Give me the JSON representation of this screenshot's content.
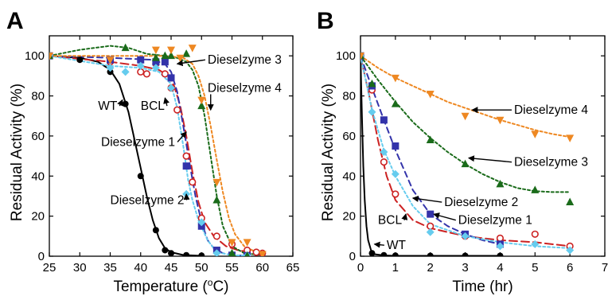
{
  "chart_data": [
    {
      "type": "line",
      "panel": "A",
      "xlabel": "Temperature (",
      "xlabel_sup": "o",
      "xlabel_tail": "C)",
      "ylabel": "Residual Activity (%)",
      "xlim": [
        25,
        65
      ],
      "ylim": [
        0,
        110
      ],
      "xticks": [
        25,
        30,
        35,
        40,
        45,
        50,
        55,
        60,
        65
      ],
      "yticks": [
        0,
        20,
        40,
        60,
        80,
        100
      ],
      "grid": false,
      "series": [
        {
          "name": "WT",
          "color": "#000000",
          "marker": "circle-filled",
          "line": "solid",
          "x": [
            25,
            30,
            35,
            37.5,
            40,
            42.5,
            44,
            45,
            47.5,
            50
          ],
          "y": [
            100,
            98,
            92,
            76,
            40,
            13,
            3,
            1.5,
            0.5,
            0.3
          ],
          "fit": [
            [
              25,
              100
            ],
            [
              30,
              99
            ],
            [
              33,
              97
            ],
            [
              35,
              93
            ],
            [
              36.5,
              86
            ],
            [
              38,
              72
            ],
            [
              39,
              58
            ],
            [
              40,
              44
            ],
            [
              41,
              30
            ],
            [
              42,
              18
            ],
            [
              43,
              9
            ],
            [
              44,
              4
            ],
            [
              45,
              2
            ],
            [
              47,
              0.6
            ],
            [
              50,
              0.2
            ]
          ]
        },
        {
          "name": "BCL",
          "color": "#cc2222",
          "marker": "circle-open",
          "line": "longdash",
          "x": [
            25,
            35,
            40,
            41,
            42.5,
            44,
            45,
            46,
            47.5,
            48.5,
            50,
            52.5,
            55,
            57.5,
            59,
            60
          ],
          "y": [
            100,
            97,
            92,
            91,
            96,
            91,
            84,
            73,
            50,
            37,
            19,
            10,
            6,
            3,
            2,
            1.5
          ],
          "fit": [
            [
              25,
              100
            ],
            [
              35,
              97
            ],
            [
              40,
              95
            ],
            [
              43,
              93
            ],
            [
              44.5,
              90
            ],
            [
              45.5,
              85
            ],
            [
              46.5,
              75
            ],
            [
              47.5,
              60
            ],
            [
              48.5,
              42
            ],
            [
              49.5,
              27
            ],
            [
              50.5,
              17
            ],
            [
              52,
              10
            ],
            [
              54,
              5
            ],
            [
              56,
              3
            ],
            [
              58,
              2
            ],
            [
              60,
              1.5
            ]
          ]
        },
        {
          "name": "Dieselzyme 1",
          "color": "#3333aa",
          "marker": "square-filled",
          "line": "dash",
          "x": [
            25,
            35,
            40,
            42.5,
            44,
            45,
            47.5,
            50,
            52.5,
            55,
            57.5
          ],
          "y": [
            100,
            98,
            98,
            97,
            97,
            89,
            45,
            15,
            3,
            0.5,
            0.3
          ],
          "fit": [
            [
              25,
              100
            ],
            [
              35,
              99
            ],
            [
              42,
              98
            ],
            [
              44,
              96
            ],
            [
              45,
              92
            ],
            [
              46,
              82
            ],
            [
              47,
              65
            ],
            [
              48,
              47
            ],
            [
              49,
              30
            ],
            [
              50,
              17
            ],
            [
              51,
              8
            ],
            [
              52,
              4
            ],
            [
              53.5,
              1.5
            ],
            [
              55,
              0.5
            ],
            [
              58,
              0.2
            ]
          ]
        },
        {
          "name": "Dieselzyme 2",
          "color": "#66ccee",
          "marker": "diamond-filled",
          "line": "dot",
          "x": [
            25,
            35,
            37.5,
            40,
            42.5,
            45,
            47.5,
            50,
            52.5,
            55,
            57.5
          ],
          "y": [
            100,
            94,
            92,
            95,
            94,
            84,
            31,
            17,
            1.5,
            0.5,
            0.3
          ],
          "fit": [
            [
              25,
              100
            ],
            [
              35,
              95
            ],
            [
              40,
              94
            ],
            [
              43,
              92
            ],
            [
              45,
              86
            ],
            [
              46,
              74
            ],
            [
              47,
              55
            ],
            [
              47.8,
              38
            ],
            [
              48.5,
              28
            ],
            [
              49.5,
              18
            ],
            [
              51,
              8
            ],
            [
              52.5,
              2
            ],
            [
              55,
              0.5
            ],
            [
              58,
              0.2
            ]
          ]
        },
        {
          "name": "Dieselzyme 3",
          "color": "#1a6b1a",
          "marker": "triangle-up-filled",
          "line": "dot",
          "x": [
            25,
            37.5,
            42.5,
            44,
            45,
            47.5,
            50,
            52.5,
            55,
            57.5
          ],
          "y": [
            100,
            104,
            99,
            100,
            100,
            101,
            75,
            28,
            1.5,
            0.3
          ],
          "fit": [
            [
              25,
              100
            ],
            [
              30,
              103
            ],
            [
              35,
              105
            ],
            [
              38,
              104
            ],
            [
              41,
              101
            ],
            [
              44,
              100
            ],
            [
              46,
              99
            ],
            [
              47.5,
              97
            ],
            [
              48.5,
              93
            ],
            [
              49.5,
              85
            ],
            [
              50.5,
              70
            ],
            [
              51.5,
              50
            ],
            [
              52.5,
              30
            ],
            [
              53.5,
              15
            ],
            [
              55,
              5
            ],
            [
              57,
              1.5
            ],
            [
              60,
              0.5
            ]
          ]
        },
        {
          "name": "Dieselzyme 4",
          "color": "#ee8822",
          "marker": "triangle-down-filled",
          "line": "dot",
          "x": [
            25,
            35,
            42.5,
            45,
            46.5,
            48.5,
            50,
            52.5,
            55,
            57.5,
            60
          ],
          "y": [
            100,
            98,
            103,
            103,
            99,
            104,
            78,
            37,
            7,
            7,
            1
          ],
          "fit": [
            [
              25,
              100
            ],
            [
              35,
              100
            ],
            [
              44,
              100
            ],
            [
              47,
              99
            ],
            [
              48.5,
              96
            ],
            [
              49.5,
              90
            ],
            [
              50.5,
              80
            ],
            [
              51.5,
              65
            ],
            [
              52.5,
              48
            ],
            [
              53.5,
              32
            ],
            [
              54.5,
              19
            ],
            [
              55.5,
              11
            ],
            [
              57,
              5
            ],
            [
              59,
              2
            ],
            [
              60,
              1
            ]
          ]
        }
      ],
      "annotations": [
        {
          "text": "WT",
          "tx": 33,
          "ty": 75,
          "ax": 37,
          "ay": 78
        },
        {
          "text": "BCL",
          "tx": 40,
          "ty": 75,
          "ax": 44,
          "ay": 79
        },
        {
          "text": "Dieselzyme 1",
          "tx": 33.5,
          "ty": 57,
          "ax": 47.5,
          "ay": 62
        },
        {
          "text": "Dieselzyme 2",
          "tx": 35,
          "ty": 28,
          "ax": 47.5,
          "ay": 31
        },
        {
          "text": "Dieselzyme 3",
          "tx": 51,
          "ty": 98,
          "ax": 46,
          "ay": 96
        },
        {
          "text": "Dieselzyme 4",
          "tx": 51,
          "ty": 84,
          "ax": 51.5,
          "ay": 73
        }
      ]
    },
    {
      "type": "line",
      "panel": "B",
      "xlabel": "Time (hr)",
      "ylabel": "Residual Activity (%)",
      "xlim": [
        0,
        7
      ],
      "ylim": [
        0,
        110
      ],
      "xticks": [
        0,
        1,
        2,
        3,
        4,
        5,
        6,
        7
      ],
      "yticks": [
        0,
        20,
        40,
        60,
        80,
        100
      ],
      "grid": false,
      "series": [
        {
          "name": "WT",
          "color": "#000000",
          "marker": "circle-filled",
          "line": "solid",
          "x": [
            0,
            0.33,
            0.67,
            1,
            2,
            3,
            4
          ],
          "y": [
            100,
            1.5,
            0.5,
            0.3,
            0.2,
            0.2,
            0.2
          ],
          "fit": [
            [
              0,
              100
            ],
            [
              0.04,
              70
            ],
            [
              0.08,
              45
            ],
            [
              0.12,
              28
            ],
            [
              0.17,
              15
            ],
            [
              0.22,
              8
            ],
            [
              0.3,
              3
            ],
            [
              0.4,
              1
            ],
            [
              0.67,
              0.4
            ],
            [
              1,
              0.2
            ],
            [
              4,
              0.2
            ]
          ]
        },
        {
          "name": "BCL",
          "color": "#cc2222",
          "marker": "circle-open",
          "line": "longdash",
          "x": [
            0,
            0.33,
            0.67,
            1,
            2,
            3,
            4,
            5,
            6
          ],
          "y": [
            100,
            83,
            47,
            31,
            15,
            10,
            9,
            11,
            5
          ],
          "fit": [
            [
              0,
              100
            ],
            [
              0.25,
              80
            ],
            [
              0.5,
              58
            ],
            [
              0.75,
              40
            ],
            [
              1,
              28
            ],
            [
              1.5,
              18
            ],
            [
              2,
              14
            ],
            [
              3,
              10
            ],
            [
              4,
              8
            ],
            [
              5,
              7
            ],
            [
              6,
              5
            ]
          ]
        },
        {
          "name": "Dieselzyme 1",
          "color": "#3333aa",
          "marker": "square-filled",
          "line": "dash",
          "x": [
            0,
            0.33,
            0.67,
            1,
            2,
            3,
            4
          ],
          "y": [
            100,
            85,
            68,
            55,
            21,
            11,
            6
          ],
          "fit": [
            [
              0,
              100
            ],
            [
              0.33,
              84
            ],
            [
              0.67,
              68
            ],
            [
              1,
              53
            ],
            [
              1.5,
              33
            ],
            [
              2,
              21
            ],
            [
              2.5,
              15
            ],
            [
              3,
              11
            ],
            [
              3.5,
              8
            ],
            [
              4,
              6
            ]
          ]
        },
        {
          "name": "Dieselzyme 2",
          "color": "#66ccee",
          "marker": "diamond-filled",
          "line": "dot",
          "x": [
            0,
            0.33,
            0.67,
            1,
            2,
            3,
            4,
            5,
            6
          ],
          "y": [
            100,
            72,
            52,
            41,
            12,
            10,
            5,
            6,
            3
          ],
          "fit": [
            [
              0,
              100
            ],
            [
              0.33,
              73
            ],
            [
              0.67,
              53
            ],
            [
              1,
              40
            ],
            [
              1.5,
              25
            ],
            [
              2,
              16
            ],
            [
              3,
              10
            ],
            [
              4,
              7
            ],
            [
              5,
              5
            ],
            [
              6,
              4
            ]
          ]
        },
        {
          "name": "Dieselzyme 3",
          "color": "#1a6b1a",
          "marker": "triangle-up-filled",
          "line": "dot",
          "x": [
            0,
            0.33,
            1,
            2,
            3,
            4,
            5,
            6
          ],
          "y": [
            100,
            86,
            76,
            58,
            46,
            36,
            33,
            27
          ],
          "fit": [
            [
              0,
              100
            ],
            [
              0.5,
              88
            ],
            [
              1,
              77
            ],
            [
              1.5,
              67
            ],
            [
              2,
              59
            ],
            [
              2.5,
              52
            ],
            [
              3,
              46
            ],
            [
              3.5,
              41
            ],
            [
              4,
              37
            ],
            [
              4.5,
              34
            ],
            [
              5,
              32.5
            ],
            [
              5.5,
              32
            ],
            [
              6,
              32
            ]
          ]
        },
        {
          "name": "Dieselzyme 4",
          "color": "#ee8822",
          "marker": "triangle-down-filled",
          "line": "dot",
          "x": [
            0,
            1,
            2,
            3,
            4,
            5,
            6
          ],
          "y": [
            100,
            89,
            81,
            70,
            68,
            61,
            59
          ],
          "fit": [
            [
              0,
              100
            ],
            [
              0.5,
              94
            ],
            [
              1,
              89
            ],
            [
              1.5,
              85
            ],
            [
              2,
              81
            ],
            [
              2.5,
              77
            ],
            [
              3,
              74
            ],
            [
              3.5,
              71
            ],
            [
              4,
              68
            ],
            [
              4.5,
              65.5
            ],
            [
              5,
              63
            ],
            [
              5.5,
              61
            ],
            [
              6,
              59.5
            ]
          ]
        }
      ],
      "annotations": [
        {
          "text": "Dieselzyme 4",
          "tx": 4.4,
          "ty": 73,
          "ax": 3.2,
          "ay": 73
        },
        {
          "text": "Dieselzyme 3",
          "tx": 4.4,
          "ty": 47,
          "ax": 3.1,
          "ay": 49
        },
        {
          "text": "Dieselzyme 2",
          "tx": 2.4,
          "ty": 27,
          "ax": 1.5,
          "ay": 29
        },
        {
          "text": "BCL",
          "tx": 0.5,
          "ty": 18,
          "ax": 1.3,
          "ay": 21
        },
        {
          "text": "Dieselzyme 1",
          "tx": 2.8,
          "ty": 18,
          "ax": 2.1,
          "ay": 21
        },
        {
          "text": "WT",
          "tx": 0.75,
          "ty": 5.5,
          "ax": 0.4,
          "ay": 6
        }
      ]
    }
  ]
}
